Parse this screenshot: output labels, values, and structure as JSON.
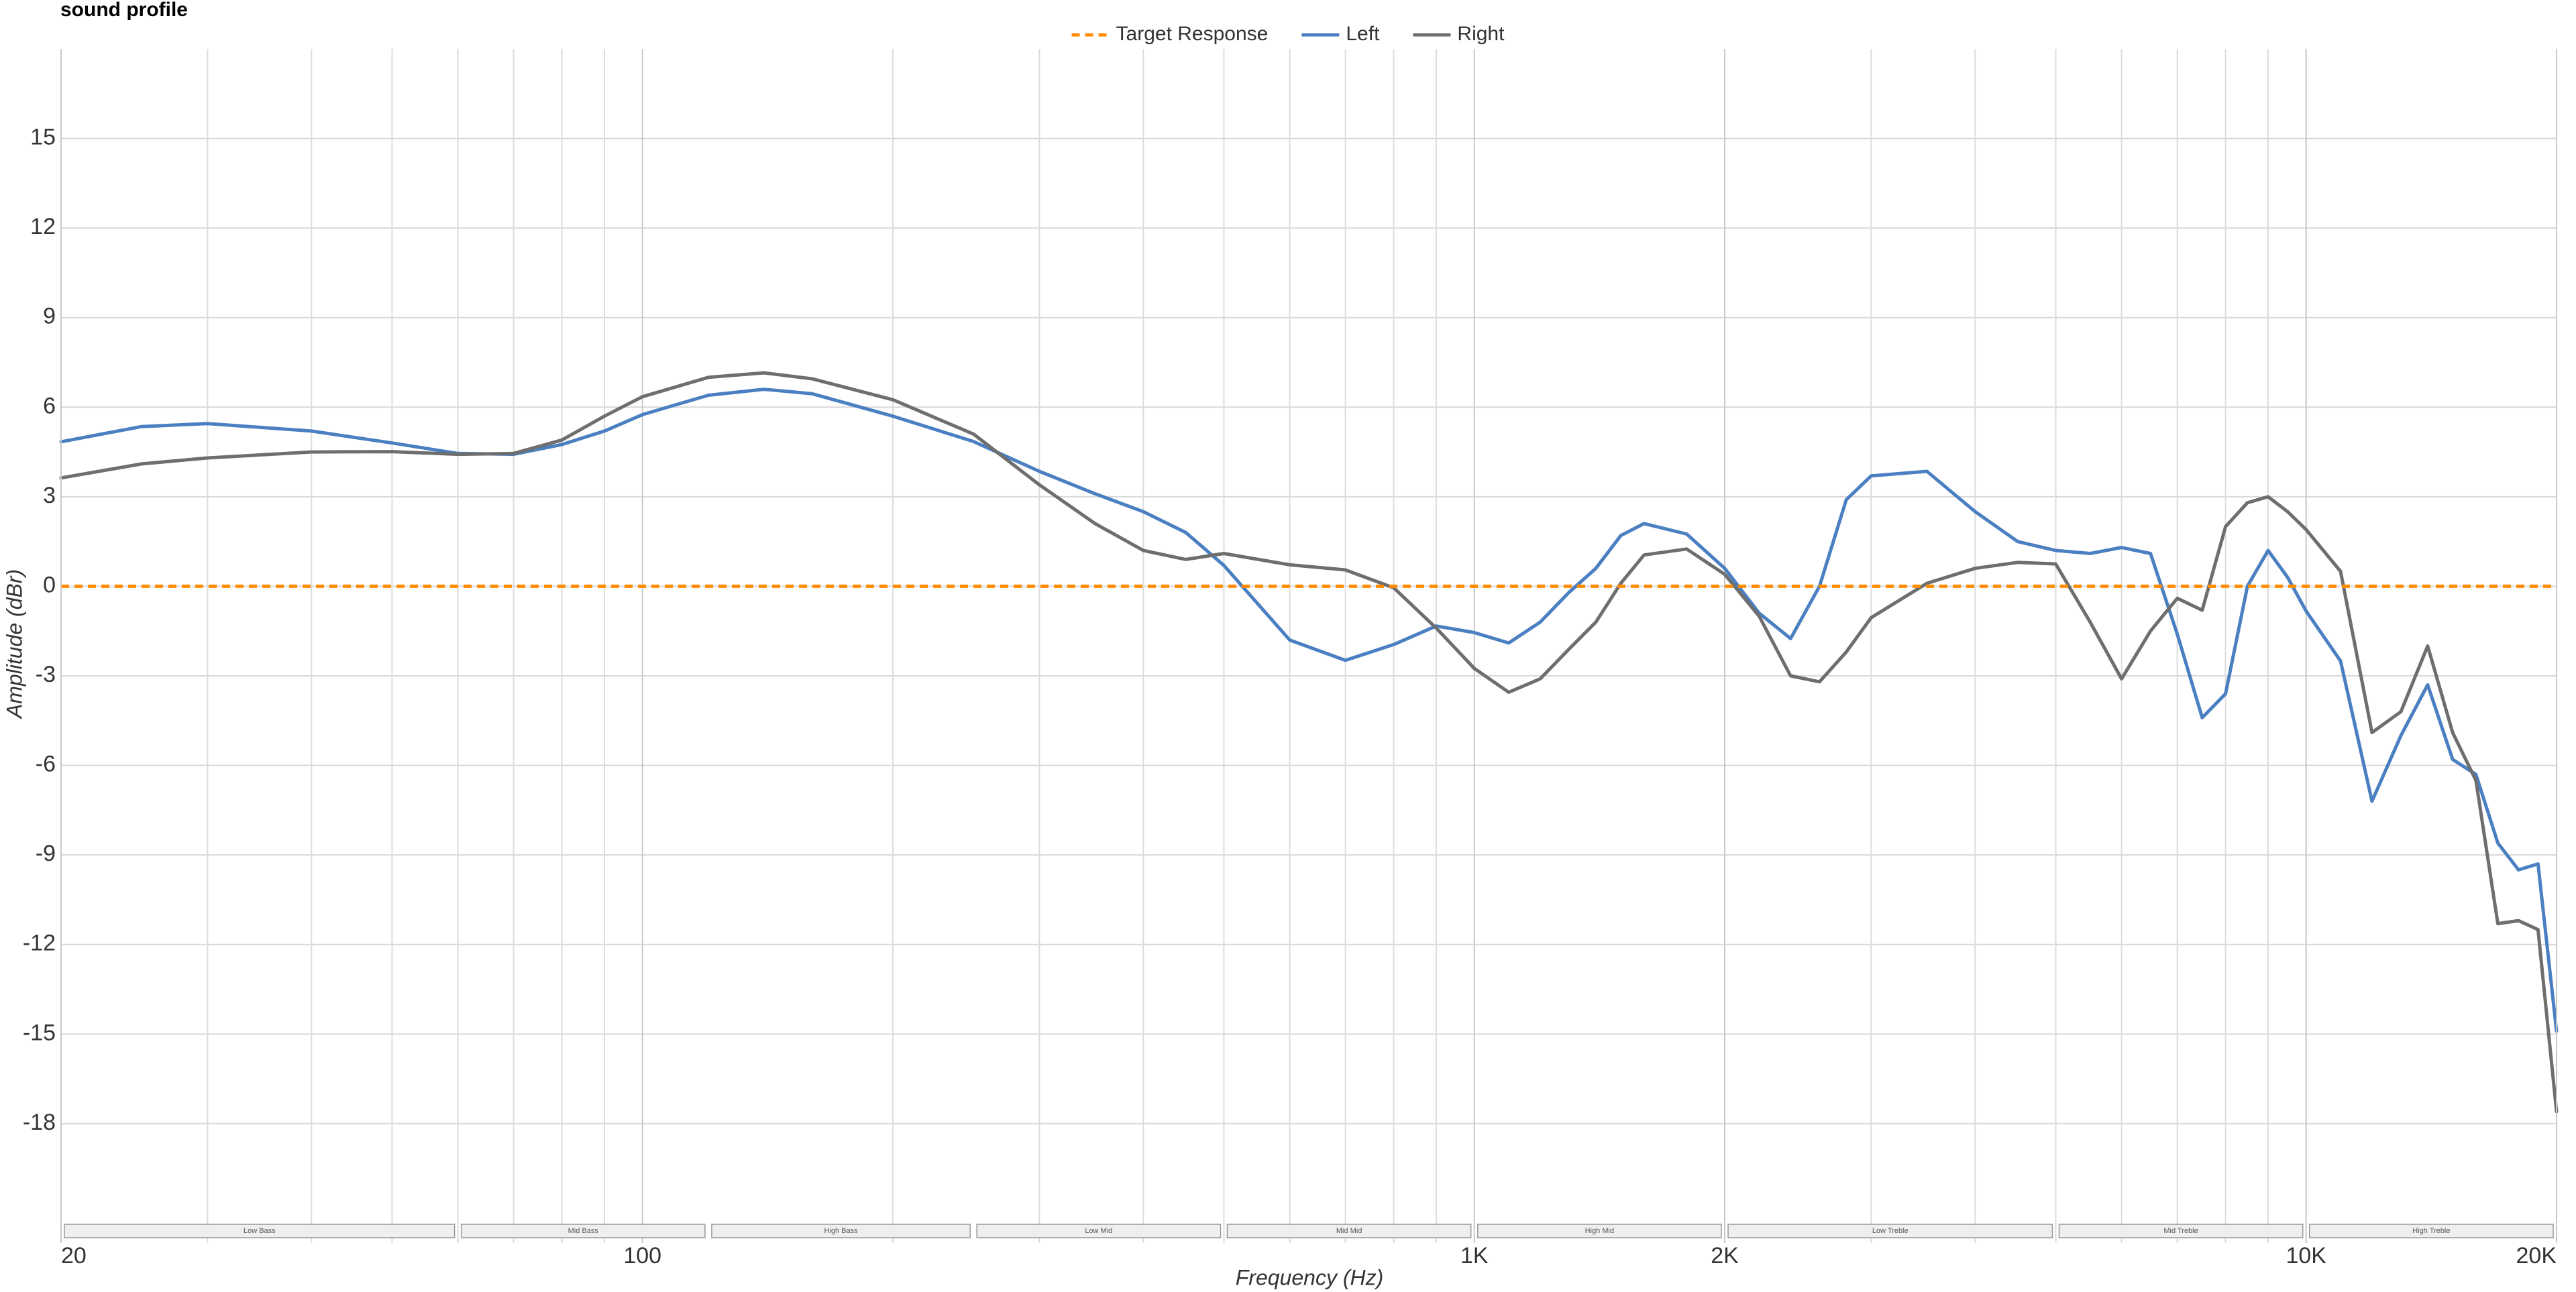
{
  "chart_data": {
    "type": "line",
    "title": "sound profile",
    "x_label": "Frequency (Hz)",
    "y_label": "Amplitude (dBr)",
    "log_x": true,
    "grid": true,
    "legend": "top",
    "xlim": [
      20,
      20000
    ],
    "ylim": [
      -22,
      18
    ],
    "xticks": [
      20,
      100,
      {
        "value": 1000,
        "label": "1K"
      },
      {
        "value": 2000,
        "label": "2K"
      },
      {
        "value": 10000,
        "label": "10K"
      },
      {
        "value": 20000,
        "label": "20K"
      }
    ],
    "xminor": [
      30,
      40,
      50,
      60,
      70,
      80,
      90,
      200,
      300,
      400,
      500,
      600,
      700,
      800,
      900,
      3000,
      4000,
      5000,
      6000,
      7000,
      8000,
      9000
    ],
    "yticks": [
      -18,
      -15,
      -12,
      -9,
      -6,
      -3,
      0,
      3,
      6,
      9,
      12,
      15
    ],
    "bands": [
      {
        "label": "Low Bass",
        "range": [
          20,
          60
        ]
      },
      {
        "label": "Mid Bass",
        "range": [
          60,
          120
        ]
      },
      {
        "label": "High Bass",
        "range": [
          120,
          250
        ]
      },
      {
        "label": "Low Mid",
        "range": [
          250,
          500
        ]
      },
      {
        "label": "Mid Mid",
        "range": [
          500,
          1000
        ]
      },
      {
        "label": "High Mid",
        "range": [
          1000,
          2000
        ]
      },
      {
        "label": "Low Treble",
        "range": [
          2000,
          5000
        ]
      },
      {
        "label": "Mid Treble",
        "range": [
          5000,
          10000
        ]
      },
      {
        "label": "High Treble",
        "range": [
          10000,
          20000
        ]
      }
    ],
    "x": [
      20,
      25,
      30,
      40,
      50,
      60,
      70,
      80,
      90,
      100,
      120,
      140,
      160,
      200,
      250,
      300,
      350,
      400,
      450,
      500,
      600,
      700,
      800,
      900,
      1000,
      1100,
      1200,
      1300,
      1400,
      1500,
      1600,
      1800,
      2000,
      2200,
      2400,
      2600,
      2800,
      3000,
      3500,
      4000,
      4500,
      5000,
      5500,
      6000,
      6500,
      7000,
      7500,
      8000,
      8500,
      9000,
      9500,
      10000,
      11000,
      12000,
      13000,
      14000,
      15000,
      16000,
      17000,
      18000,
      19000,
      20000
    ],
    "series": [
      {
        "name": "Target Response",
        "color": "#ff8c00",
        "dashed": true,
        "x": [
          20,
          20000
        ],
        "values": [
          0,
          0
        ]
      },
      {
        "name": "Left",
        "color": "#4a7fc1",
        "values": [
          4.84,
          5.35,
          5.45,
          5.2,
          4.8,
          4.45,
          4.42,
          4.75,
          5.2,
          5.75,
          6.4,
          6.6,
          6.45,
          5.7,
          4.85,
          3.85,
          3.1,
          2.5,
          1.8,
          0.7,
          -1.8,
          -2.48,
          -1.95,
          -1.33,
          -1.55,
          -1.9,
          -1.2,
          -0.2,
          0.6,
          1.7,
          2.1,
          1.75,
          0.6,
          -0.9,
          -1.75,
          0.0,
          2.9,
          3.7,
          3.85,
          2.5,
          1.5,
          1.2,
          1.1,
          1.3,
          1.1,
          -1.6,
          -4.4,
          -3.6,
          0.0,
          1.2,
          0.3,
          -0.83,
          -2.5,
          -7.2,
          -5.0,
          -3.3,
          -5.8,
          -6.3,
          -8.6,
          -9.5,
          -9.3,
          -14.9
        ]
      },
      {
        "name": "Right",
        "color": "#6e6e6e",
        "values": [
          3.63,
          4.1,
          4.3,
          4.5,
          4.51,
          4.42,
          4.45,
          4.9,
          5.7,
          6.35,
          7.0,
          7.15,
          6.95,
          6.25,
          5.1,
          3.4,
          2.1,
          1.2,
          0.9,
          1.1,
          0.72,
          0.55,
          -0.05,
          -1.4,
          -2.75,
          -3.55,
          -3.1,
          -2.1,
          -1.2,
          0.1,
          1.05,
          1.25,
          0.4,
          -1.0,
          -3.0,
          -3.2,
          -2.2,
          -1.05,
          0.1,
          0.6,
          0.8,
          0.75,
          -1.2,
          -3.1,
          -1.5,
          -0.4,
          -0.8,
          2.0,
          2.8,
          3.0,
          2.5,
          1.9,
          0.5,
          -4.9,
          -4.2,
          -2.0,
          -4.9,
          -6.5,
          -11.3,
          -11.2,
          -11.5,
          -17.6
        ]
      }
    ]
  }
}
